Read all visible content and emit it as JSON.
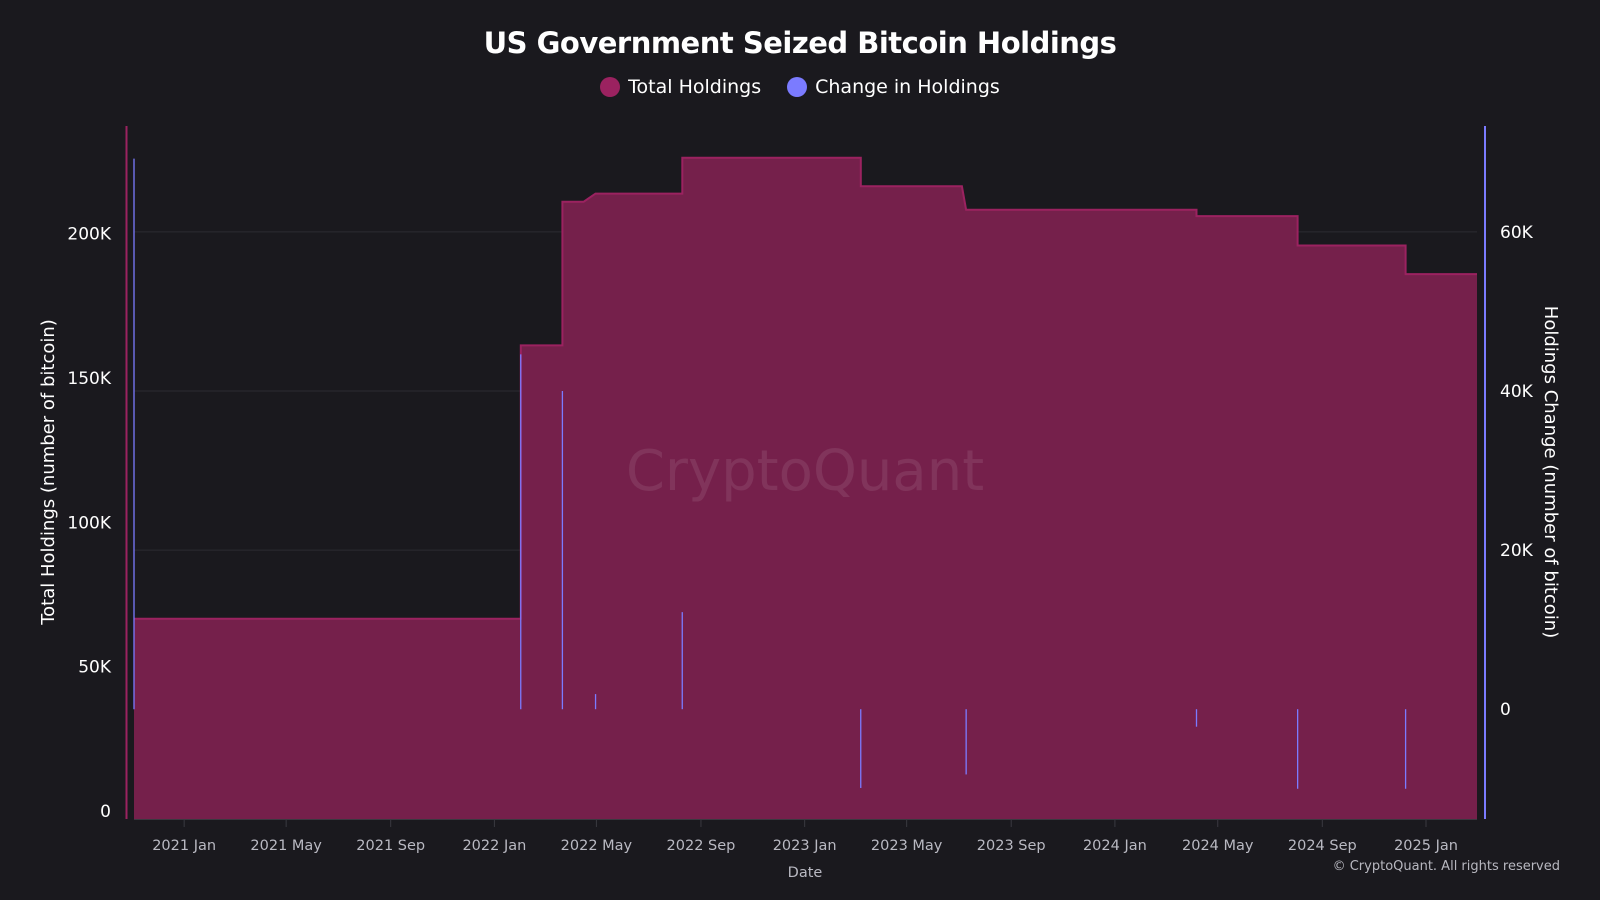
{
  "chart_data": {
    "type": "area",
    "title": "US Government Seized Bitcoin Holdings",
    "xlabel": "Date",
    "ylabel_left": "Total Holdings (number of bitcoin)",
    "ylabel_right": "Holdings Change (number of bitcoin)",
    "xlim": [
      "2020-11-03",
      "2025-03-02"
    ],
    "ylim_left": [
      0,
      240000
    ],
    "ylim_right": [
      -13800,
      73300
    ],
    "x_ticks": [
      "2021 Jan",
      "2021 May",
      "2021 Sep",
      "2022 Jan",
      "2022 May",
      "2022 Sep",
      "2023 Jan",
      "2023 May",
      "2023 Sep",
      "2024 Jan",
      "2024 May",
      "2024 Sep",
      "2025 Jan"
    ],
    "x_tick_dates": [
      "2021-01-01",
      "2021-05-01",
      "2021-09-01",
      "2022-01-01",
      "2022-05-01",
      "2022-09-01",
      "2023-01-01",
      "2023-05-01",
      "2023-09-01",
      "2024-01-01",
      "2024-05-01",
      "2024-09-01",
      "2025-01-01"
    ],
    "y_ticks_left": [
      0,
      50000,
      100000,
      150000,
      200000
    ],
    "y_tick_labels_left": [
      "0",
      "50K",
      "100K",
      "150K",
      "200K"
    ],
    "y_ticks_right": [
      0,
      20000,
      40000,
      60000
    ],
    "y_tick_labels_right": [
      "0",
      "20K",
      "40K",
      "60K"
    ],
    "grid": true,
    "legend_placement": "top-center",
    "series": [
      {
        "name": "Total Holdings",
        "type": "step-area",
        "axis": "left",
        "color": "#9b2260",
        "fill": "#75204b",
        "points": [
          [
            "2020-11-03",
            69370
          ],
          [
            "2022-02-01",
            69370
          ],
          [
            "2022-02-01",
            164000
          ],
          [
            "2022-03-22",
            164000
          ],
          [
            "2022-03-22",
            213800
          ],
          [
            "2022-04-16",
            213800
          ],
          [
            "2022-04-30",
            216600
          ],
          [
            "2022-08-10",
            216600
          ],
          [
            "2022-08-10",
            229000
          ],
          [
            "2023-03-08",
            229000
          ],
          [
            "2023-03-08",
            219100
          ],
          [
            "2023-07-05",
            219100
          ],
          [
            "2023-07-10",
            211000
          ],
          [
            "2024-04-06",
            211000
          ],
          [
            "2024-04-06",
            208800
          ],
          [
            "2024-08-03",
            208800
          ],
          [
            "2024-08-03",
            198600
          ],
          [
            "2024-12-08",
            198600
          ],
          [
            "2024-12-08",
            188700
          ],
          [
            "2025-03-02",
            188700
          ]
        ]
      },
      {
        "name": "Change in Holdings",
        "type": "bar",
        "axis": "right",
        "color": "#7b7bff",
        "points": [
          [
            "2020-11-03",
            69200
          ],
          [
            "2022-02-01",
            44600
          ],
          [
            "2022-03-22",
            40000
          ],
          [
            "2022-04-30",
            1900
          ],
          [
            "2022-08-10",
            12200
          ],
          [
            "2023-03-08",
            -9900
          ],
          [
            "2023-07-10",
            -8200
          ],
          [
            "2024-04-06",
            -2200
          ],
          [
            "2024-08-03",
            -10000
          ],
          [
            "2024-12-08",
            -10000
          ]
        ]
      }
    ],
    "watermark": "CryptoQuant"
  },
  "legend": [
    {
      "label": "Total Holdings",
      "color": "#9b2260"
    },
    {
      "label": "Change in Holdings",
      "color": "#7b7bff"
    }
  ],
  "copyright": "© CryptoQuant. All rights reserved"
}
